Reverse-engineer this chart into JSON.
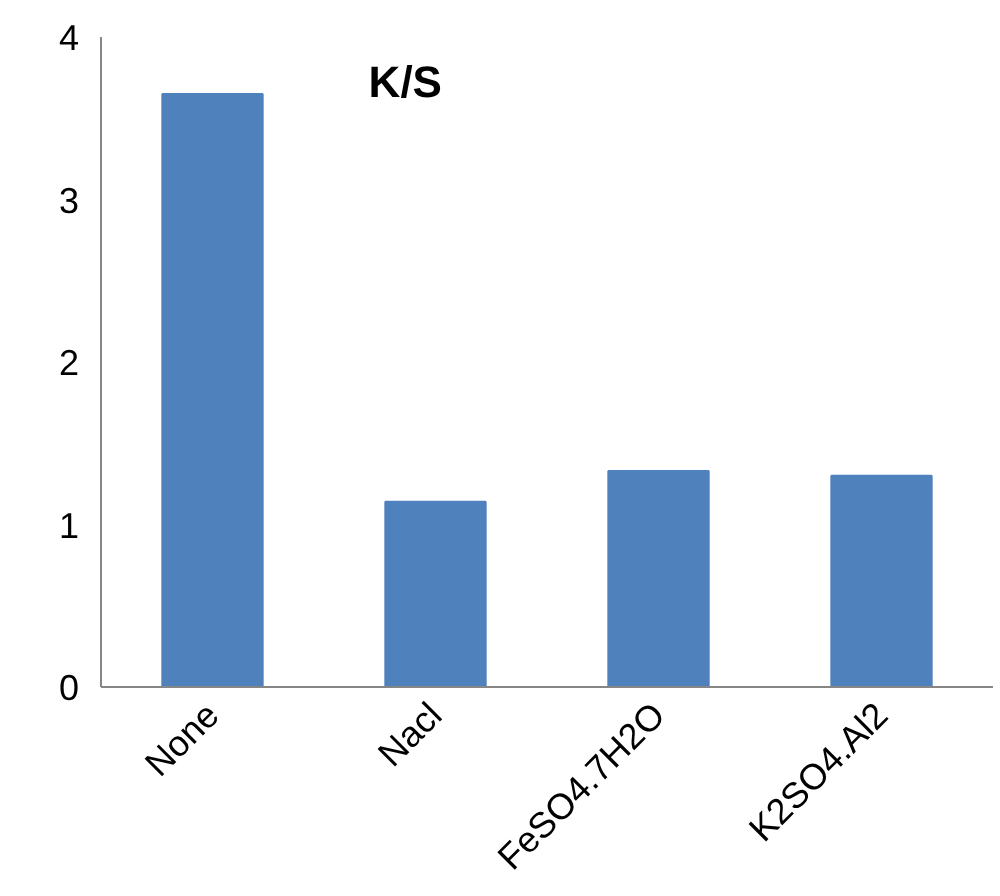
{
  "chart_data": {
    "type": "bar",
    "title": "K/S",
    "categories": [
      "None",
      "Nacl",
      "FeSO4.7H2O",
      "K2SO4.Al2"
    ],
    "values": [
      3.65,
      1.14,
      1.33,
      1.3
    ],
    "color": "#4f81bd",
    "ylim": [
      0,
      4
    ],
    "yticks": [
      0,
      1,
      2,
      3,
      4
    ],
    "grid": false
  }
}
